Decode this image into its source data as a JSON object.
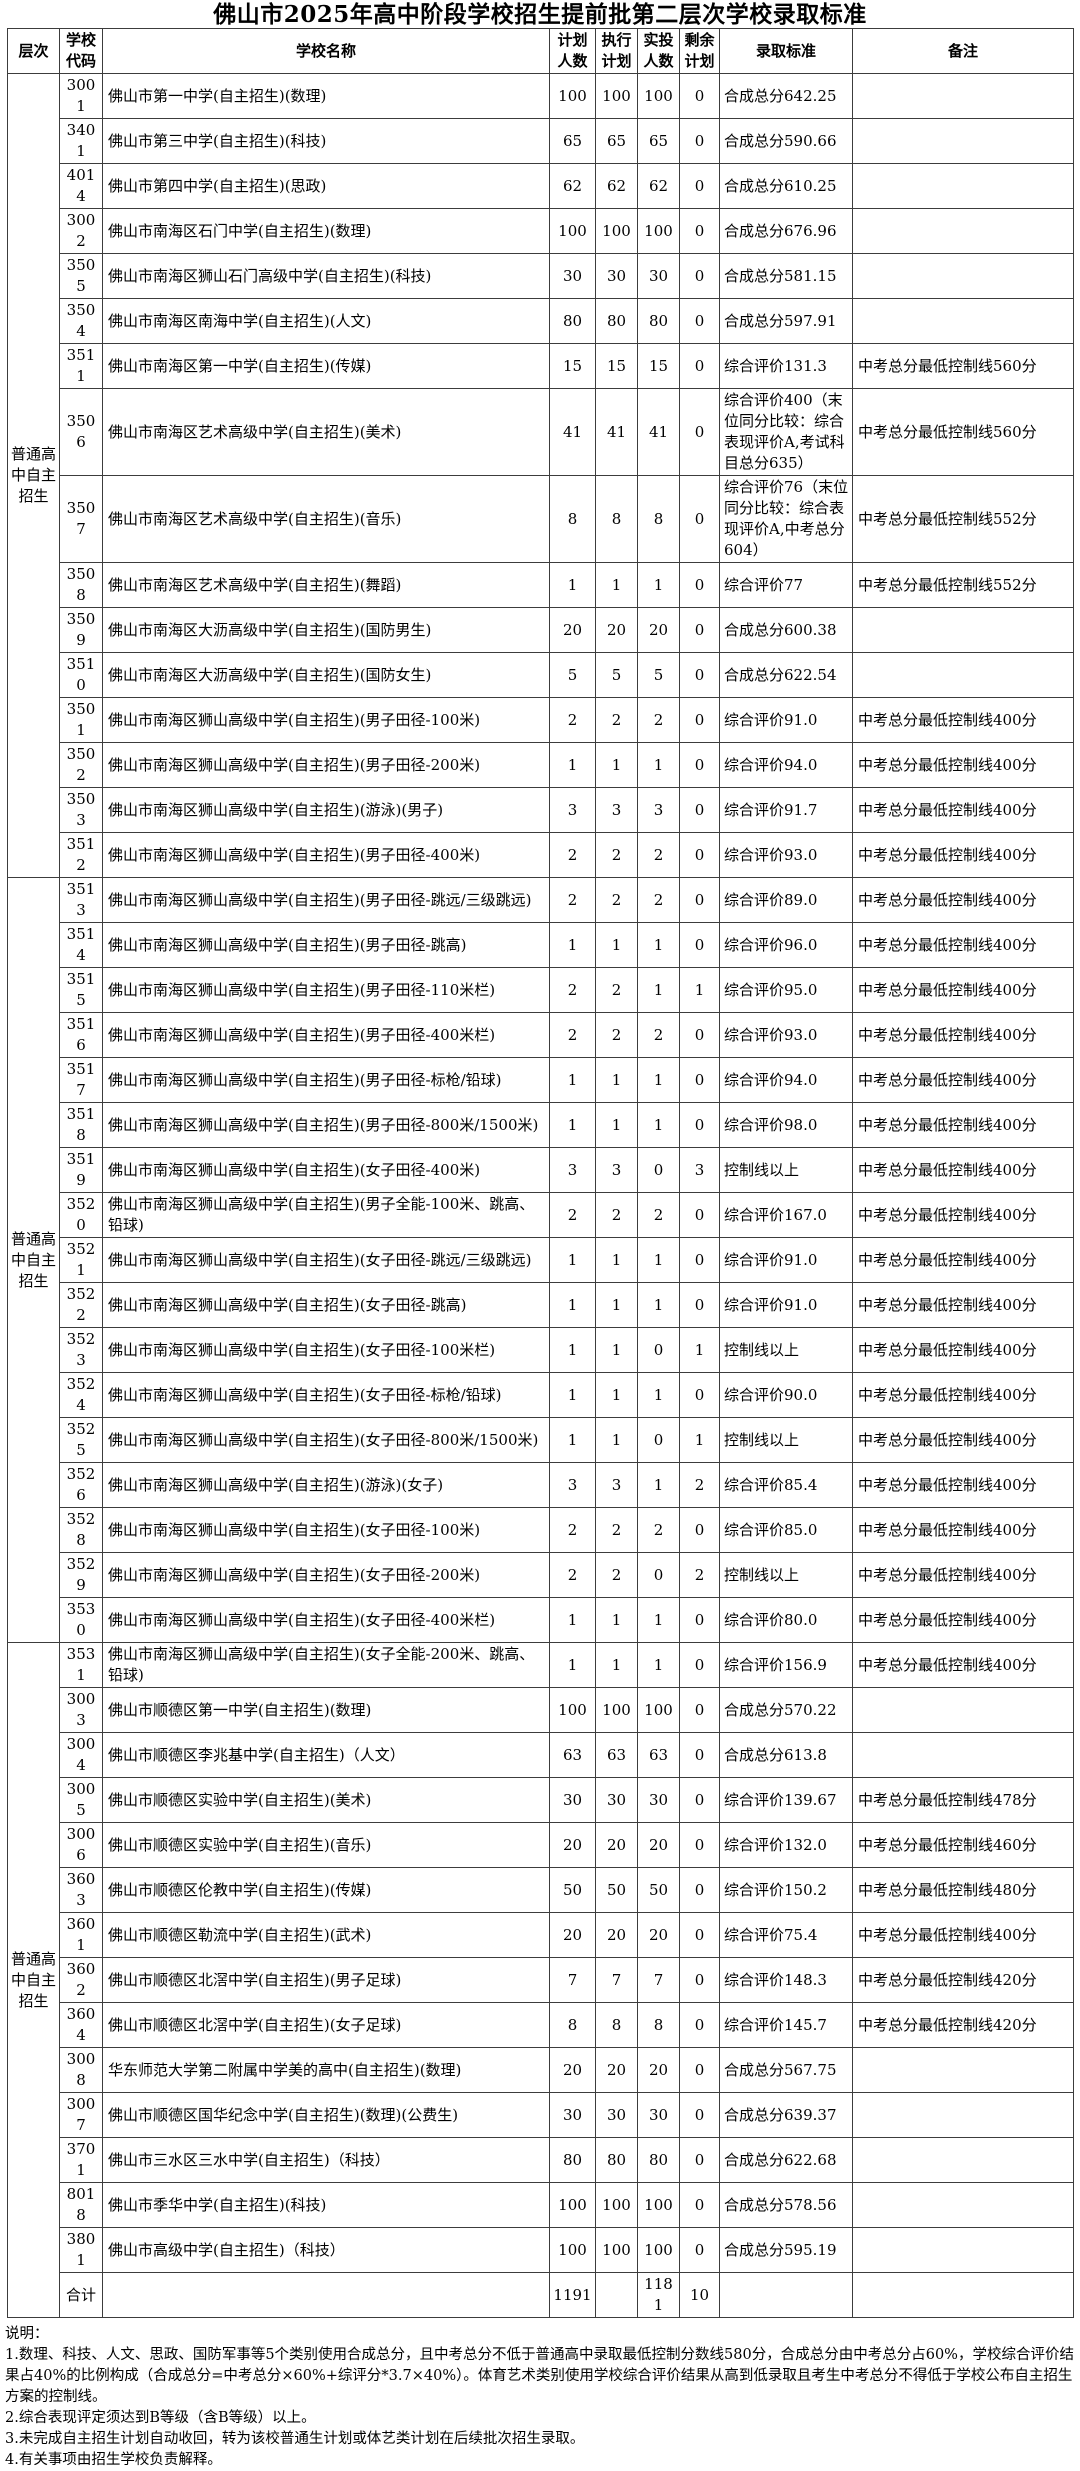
{
  "title": "佛山市2025年高中阶段学校招生提前批第二层次学校录取标准",
  "columns": [
    "层次",
    "学校代码",
    "学校名称",
    "计划人数",
    "执行计划",
    "实投人数",
    "剩余计划",
    "录取标准",
    "备注"
  ],
  "level_label": "普通高中自主招生",
  "groups": [
    {
      "rows": [
        [
          "3001",
          "佛山市第一中学(自主招生)(数理)",
          "100",
          "100",
          "100",
          "0",
          "合成总分642.25",
          ""
        ],
        [
          "3401",
          "佛山市第三中学(自主招生)(科技)",
          "65",
          "65",
          "65",
          "0",
          "合成总分590.66",
          ""
        ],
        [
          "4014",
          "佛山市第四中学(自主招生)(思政)",
          "62",
          "62",
          "62",
          "0",
          "合成总分610.25",
          ""
        ],
        [
          "3002",
          "佛山市南海区石门中学(自主招生)(数理)",
          "100",
          "100",
          "100",
          "0",
          "合成总分676.96",
          ""
        ],
        [
          "3505",
          "佛山市南海区狮山石门高级中学(自主招生)(科技)",
          "30",
          "30",
          "30",
          "0",
          "合成总分581.15",
          ""
        ],
        [
          "3504",
          "佛山市南海区南海中学(自主招生)(人文)",
          "80",
          "80",
          "80",
          "0",
          "合成总分597.91",
          ""
        ],
        [
          "3511",
          "佛山市南海区第一中学(自主招生)(传媒)",
          "15",
          "15",
          "15",
          "0",
          "综合评价131.3",
          "中考总分最低控制线560分"
        ],
        [
          "3506",
          "佛山市南海区艺术高级中学(自主招生)(美术)",
          "41",
          "41",
          "41",
          "0",
          "综合评价400（末位同分比较：综合表现评价A,考试科目总分635）",
          "中考总分最低控制线560分"
        ],
        [
          "3507",
          "佛山市南海区艺术高级中学(自主招生)(音乐)",
          "8",
          "8",
          "8",
          "0",
          "综合评价76（末位同分比较：综合表现评价A,中考总分604）",
          "中考总分最低控制线552分"
        ],
        [
          "3508",
          "佛山市南海区艺术高级中学(自主招生)(舞蹈)",
          "1",
          "1",
          "1",
          "0",
          "综合评价77",
          "中考总分最低控制线552分"
        ],
        [
          "3509",
          "佛山市南海区大沥高级中学(自主招生)(国防男生)",
          "20",
          "20",
          "20",
          "0",
          "合成总分600.38",
          ""
        ],
        [
          "3510",
          "佛山市南海区大沥高级中学(自主招生)(国防女生)",
          "5",
          "5",
          "5",
          "0",
          "合成总分622.54",
          ""
        ],
        [
          "3501",
          "佛山市南海区狮山高级中学(自主招生)(男子田径-100米)",
          "2",
          "2",
          "2",
          "0",
          "综合评价91.0",
          "中考总分最低控制线400分"
        ],
        [
          "3502",
          "佛山市南海区狮山高级中学(自主招生)(男子田径-200米)",
          "1",
          "1",
          "1",
          "0",
          "综合评价94.0",
          "中考总分最低控制线400分"
        ],
        [
          "3503",
          "佛山市南海区狮山高级中学(自主招生)(游泳)(男子)",
          "3",
          "3",
          "3",
          "0",
          "综合评价91.7",
          "中考总分最低控制线400分"
        ],
        [
          "3512",
          "佛山市南海区狮山高级中学(自主招生)(男子田径-400米)",
          "2",
          "2",
          "2",
          "0",
          "综合评价93.0",
          "中考总分最低控制线400分"
        ]
      ]
    },
    {
      "rows": [
        [
          "3513",
          "佛山市南海区狮山高级中学(自主招生)(男子田径-跳远/三级跳远)",
          "2",
          "2",
          "2",
          "0",
          "综合评价89.0",
          "中考总分最低控制线400分"
        ],
        [
          "3514",
          "佛山市南海区狮山高级中学(自主招生)(男子田径-跳高)",
          "1",
          "1",
          "1",
          "0",
          "综合评价96.0",
          "中考总分最低控制线400分"
        ],
        [
          "3515",
          "佛山市南海区狮山高级中学(自主招生)(男子田径-110米栏)",
          "2",
          "2",
          "1",
          "1",
          "综合评价95.0",
          "中考总分最低控制线400分"
        ],
        [
          "3516",
          "佛山市南海区狮山高级中学(自主招生)(男子田径-400米栏)",
          "2",
          "2",
          "2",
          "0",
          "综合评价93.0",
          "中考总分最低控制线400分"
        ],
        [
          "3517",
          "佛山市南海区狮山高级中学(自主招生)(男子田径-标枪/铅球)",
          "1",
          "1",
          "1",
          "0",
          "综合评价94.0",
          "中考总分最低控制线400分"
        ],
        [
          "3518",
          "佛山市南海区狮山高级中学(自主招生)(男子田径-800米/1500米)",
          "1",
          "1",
          "1",
          "0",
          "综合评价98.0",
          "中考总分最低控制线400分"
        ],
        [
          "3519",
          "佛山市南海区狮山高级中学(自主招生)(女子田径-400米)",
          "3",
          "3",
          "0",
          "3",
          "控制线以上",
          "中考总分最低控制线400分"
        ],
        [
          "3520",
          "佛山市南海区狮山高级中学(自主招生)(男子全能-100米、跳高、铅球)",
          "2",
          "2",
          "2",
          "0",
          "综合评价167.0",
          "中考总分最低控制线400分"
        ],
        [
          "3521",
          "佛山市南海区狮山高级中学(自主招生)(女子田径-跳远/三级跳远)",
          "1",
          "1",
          "1",
          "0",
          "综合评价91.0",
          "中考总分最低控制线400分"
        ],
        [
          "3522",
          "佛山市南海区狮山高级中学(自主招生)(女子田径-跳高)",
          "1",
          "1",
          "1",
          "0",
          "综合评价91.0",
          "中考总分最低控制线400分"
        ],
        [
          "3523",
          "佛山市南海区狮山高级中学(自主招生)(女子田径-100米栏)",
          "1",
          "1",
          "0",
          "1",
          "控制线以上",
          "中考总分最低控制线400分"
        ],
        [
          "3524",
          "佛山市南海区狮山高级中学(自主招生)(女子田径-标枪/铅球)",
          "1",
          "1",
          "1",
          "0",
          "综合评价90.0",
          "中考总分最低控制线400分"
        ],
        [
          "3525",
          "佛山市南海区狮山高级中学(自主招生)(女子田径-800米/1500米)",
          "1",
          "1",
          "0",
          "1",
          "控制线以上",
          "中考总分最低控制线400分"
        ],
        [
          "3526",
          "佛山市南海区狮山高级中学(自主招生)(游泳)(女子)",
          "3",
          "3",
          "1",
          "2",
          "综合评价85.4",
          "中考总分最低控制线400分"
        ],
        [
          "3528",
          "佛山市南海区狮山高级中学(自主招生)(女子田径-100米)",
          "2",
          "2",
          "2",
          "0",
          "综合评价85.0",
          "中考总分最低控制线400分"
        ],
        [
          "3529",
          "佛山市南海区狮山高级中学(自主招生)(女子田径-200米)",
          "2",
          "2",
          "0",
          "2",
          "控制线以上",
          "中考总分最低控制线400分"
        ],
        [
          "3530",
          "佛山市南海区狮山高级中学(自主招生)(女子田径-400米栏)",
          "1",
          "1",
          "1",
          "0",
          "综合评价80.0",
          "中考总分最低控制线400分"
        ]
      ]
    },
    {
      "rows": [
        [
          "3531",
          "佛山市南海区狮山高级中学(自主招生)(女子全能-200米、跳高、铅球)",
          "1",
          "1",
          "1",
          "0",
          "综合评价156.9",
          "中考总分最低控制线400分"
        ],
        [
          "3003",
          "佛山市顺德区第一中学(自主招生)(数理)",
          "100",
          "100",
          "100",
          "0",
          "合成总分570.22",
          ""
        ],
        [
          "3004",
          "佛山市顺德区李兆基中学(自主招生)（人文）",
          "63",
          "63",
          "63",
          "0",
          "合成总分613.8",
          ""
        ],
        [
          "3005",
          "佛山市顺德区实验中学(自主招生)(美术)",
          "30",
          "30",
          "30",
          "0",
          "综合评价139.67",
          "中考总分最低控制线478分"
        ],
        [
          "3006",
          "佛山市顺德区实验中学(自主招生)(音乐)",
          "20",
          "20",
          "20",
          "0",
          "综合评价132.0",
          "中考总分最低控制线460分"
        ],
        [
          "3603",
          "佛山市顺德区伦教中学(自主招生)(传媒)",
          "50",
          "50",
          "50",
          "0",
          "综合评价150.2",
          "中考总分最低控制线480分"
        ],
        [
          "3601",
          "佛山市顺德区勒流中学(自主招生)(武术)",
          "20",
          "20",
          "20",
          "0",
          "综合评价75.4",
          "中考总分最低控制线400分"
        ],
        [
          "3602",
          "佛山市顺德区北滘中学(自主招生)(男子足球)",
          "7",
          "7",
          "7",
          "0",
          "综合评价148.3",
          "中考总分最低控制线420分"
        ],
        [
          "3604",
          "佛山市顺德区北滘中学(自主招生)(女子足球)",
          "8",
          "8",
          "8",
          "0",
          "综合评价145.7",
          "中考总分最低控制线420分"
        ],
        [
          "3008",
          "华东师范大学第二附属中学美的高中(自主招生)(数理)",
          "20",
          "20",
          "20",
          "0",
          "合成总分567.75",
          ""
        ],
        [
          "3007",
          "佛山市顺德区国华纪念中学(自主招生)(数理)(公费生)",
          "30",
          "30",
          "30",
          "0",
          "合成总分639.37",
          ""
        ],
        [
          "3701",
          "佛山市三水区三水中学(自主招生)（科技）",
          "80",
          "80",
          "80",
          "0",
          "合成总分622.68",
          ""
        ],
        [
          "8018",
          "佛山市季华中学(自主招生)(科技)",
          "100",
          "100",
          "100",
          "0",
          "合成总分578.56",
          ""
        ],
        [
          "3801",
          "佛山市高级中学(自主招生)（科技）",
          "100",
          "100",
          "100",
          "0",
          "合成总分595.19",
          ""
        ]
      ]
    }
  ],
  "total": {
    "label": "合计",
    "name": "",
    "planned": "1191",
    "executed": "",
    "actual": "1181",
    "remaining": "10",
    "standard": "",
    "remark": ""
  },
  "notes_title": "说明：",
  "notes": [
    "1.数理、科技、人文、思政、国防军事等5个类别使用合成总分，且中考总分不低于普通高中录取最低控制分数线580分，合成总分由中考总分占60%，学校综合评价结果占40%的比例构成（合成总分=中考总分×60%+综评分*3.7×40%）。体育艺术类别使用学校综合评价结果从高到低录取且考生中考总分不得低于学校公布自主招生方案的控制线。",
    "2.综合表现评定须达到B等级（含B等级）以上。",
    "3.未完成自主招生计划自动收回，转为该校普通生计划或体艺类计划在后续批次招生录取。",
    "4.有关事项由招生学校负责解释。"
  ]
}
